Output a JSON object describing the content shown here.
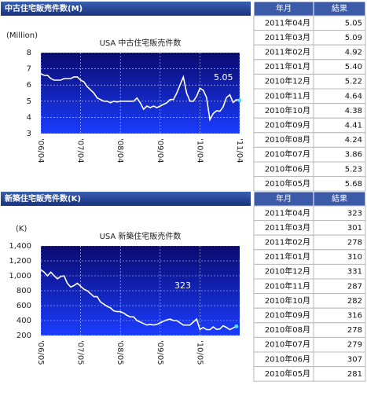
{
  "chart_data": [
    {
      "type": "line",
      "title": "USA 中古住宅販売件数",
      "y_label": "(Million)",
      "annotation": "5.05",
      "categories": [
        "'06/04",
        null,
        null,
        null,
        null,
        null,
        null,
        null,
        null,
        null,
        null,
        null,
        "'07/04",
        null,
        null,
        null,
        null,
        null,
        null,
        null,
        null,
        null,
        null,
        null,
        "'08/04",
        null,
        null,
        null,
        null,
        null,
        null,
        null,
        null,
        null,
        null,
        null,
        "'09/04",
        null,
        null,
        null,
        null,
        null,
        null,
        null,
        null,
        null,
        null,
        null,
        "'10/04",
        null,
        null,
        null,
        null,
        null,
        null,
        null,
        null,
        null,
        null,
        null,
        "'11/04"
      ],
      "series": [
        {
          "color": "#ffffff",
          "values": [
            6.7,
            6.6,
            6.6,
            6.4,
            6.3,
            6.3,
            6.3,
            6.4,
            6.4,
            6.4,
            6.5,
            6.5,
            6.3,
            6.2,
            5.9,
            5.7,
            5.5,
            5.2,
            5.1,
            5.0,
            5.0,
            4.9,
            5.0,
            4.95,
            5.0,
            5.0,
            5.0,
            5.0,
            5.0,
            5.2,
            4.9,
            4.5,
            4.7,
            4.6,
            4.7,
            4.6,
            4.7,
            4.8,
            4.9,
            5.1,
            5.1,
            5.5,
            6.0,
            6.5,
            5.5,
            5.0,
            5.0,
            5.3,
            5.8,
            5.68,
            5.23,
            3.86,
            4.24,
            4.41,
            4.38,
            4.64,
            5.22,
            5.4,
            4.92,
            5.09,
            5.05
          ]
        }
      ],
      "ylim": [
        3,
        8
      ],
      "yticks": [
        3,
        4,
        5,
        6,
        7,
        8
      ],
      "grid": true
    },
    {
      "type": "line",
      "title": "USA 新築住宅販売件数",
      "y_label": "(K)",
      "annotation": "323",
      "categories": [
        "'06/05",
        null,
        null,
        null,
        null,
        null,
        null,
        null,
        null,
        null,
        null,
        null,
        "'07/05",
        null,
        null,
        null,
        null,
        null,
        null,
        null,
        null,
        null,
        null,
        null,
        "'08/05",
        null,
        null,
        null,
        null,
        null,
        null,
        null,
        null,
        null,
        null,
        null,
        "'09/05",
        null,
        null,
        null,
        null,
        null,
        null,
        null,
        null,
        null,
        null,
        null,
        "'10/05",
        null,
        null,
        null,
        null,
        null,
        null,
        null,
        null,
        null,
        null,
        null
      ],
      "series": [
        {
          "color": "#ffffff",
          "values": [
            1080,
            1050,
            1000,
            1050,
            1000,
            960,
            990,
            1000,
            900,
            850,
            870,
            900,
            860,
            820,
            800,
            760,
            720,
            720,
            650,
            620,
            590,
            570,
            530,
            520,
            520,
            500,
            470,
            450,
            450,
            400,
            380,
            360,
            340,
            350,
            340,
            350,
            370,
            390,
            410,
            420,
            400,
            400,
            370,
            340,
            340,
            340,
            380,
            420,
            281,
            307,
            279,
            278,
            316,
            282,
            287,
            331,
            310,
            278,
            301,
            323
          ]
        }
      ],
      "ylim": [
        200,
        1400
      ],
      "yticks": [
        200,
        400,
        600,
        800,
        {
          "value": 1000,
          "label": "1,000"
        },
        {
          "value": 1200,
          "label": "1,200"
        },
        {
          "value": 1400,
          "label": "1,400"
        }
      ],
      "grid": true
    }
  ],
  "panels": [
    {
      "title": "中古住宅販売件数(M)",
      "table": {
        "header": [
          "年月",
          "結果"
        ],
        "rows": [
          [
            "2011年04月",
            "5.05"
          ],
          [
            "2011年03月",
            "5.09"
          ],
          [
            "2011年02月",
            "4.92"
          ],
          [
            "2011年01月",
            "5.40"
          ],
          [
            "2010年12月",
            "5.22"
          ],
          [
            "2010年11月",
            "4.64"
          ],
          [
            "2010年10月",
            "4.38"
          ],
          [
            "2010年09月",
            "4.41"
          ],
          [
            "2010年08月",
            "4.24"
          ],
          [
            "2010年07月",
            "3.86"
          ],
          [
            "2010年06月",
            "5.23"
          ],
          [
            "2010年05月",
            "5.68"
          ]
        ]
      }
    },
    {
      "title": "新築住宅販売件数(K)",
      "table": {
        "header": [
          "年月",
          "結果"
        ],
        "rows": [
          [
            "2011年04月",
            "323"
          ],
          [
            "2011年03月",
            "301"
          ],
          [
            "2011年02月",
            "278"
          ],
          [
            "2011年01月",
            "310"
          ],
          [
            "2010年12月",
            "331"
          ],
          [
            "2010年11月",
            "287"
          ],
          [
            "2010年10月",
            "282"
          ],
          [
            "2010年09月",
            "316"
          ],
          [
            "2010年08月",
            "278"
          ],
          [
            "2010年07月",
            "279"
          ],
          [
            "2010年06月",
            "307"
          ],
          [
            "2010年05月",
            "281"
          ]
        ]
      }
    }
  ]
}
